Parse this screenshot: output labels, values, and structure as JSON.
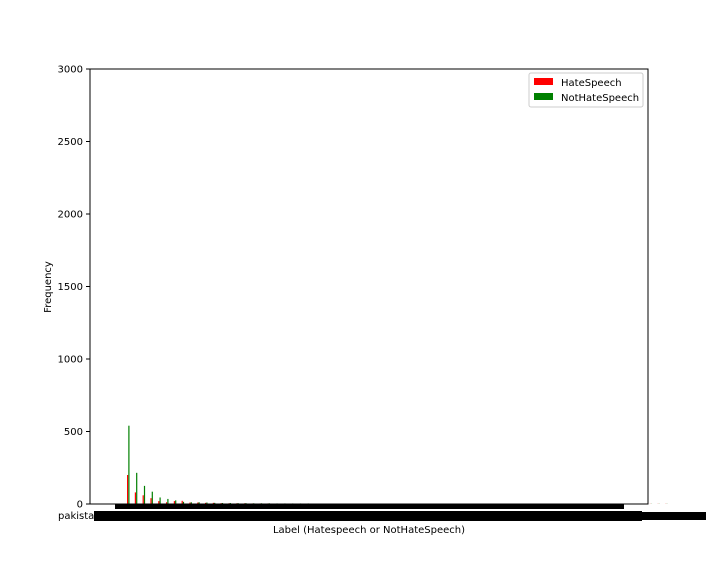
{
  "chart_data": {
    "type": "bar",
    "xlabel": "Label (Hatespeech or NotHateSpeech)",
    "ylabel": "Frequency",
    "ylim": [
      0,
      3000
    ],
    "yticks": [
      0,
      500,
      1000,
      1500,
      2000,
      2500,
      3000
    ],
    "grid": false,
    "legend_position": "top-right",
    "first_category_label": "pakistan",
    "category_count": 70,
    "series": [
      {
        "name": "HateSpeech",
        "color": "#ff0000",
        "values": [
          200,
          80,
          60,
          40,
          20,
          12,
          20,
          22,
          10,
          10,
          8,
          8,
          6,
          5,
          5,
          5,
          4,
          4,
          4,
          3,
          3,
          3,
          3,
          3,
          3,
          3,
          3,
          2,
          2,
          2,
          2,
          2,
          2,
          2,
          2,
          2,
          2,
          2,
          2,
          2,
          1,
          1,
          1,
          1,
          1,
          1,
          1,
          1,
          1,
          1,
          1,
          1,
          1,
          1,
          1,
          1,
          1,
          1,
          1,
          1,
          1,
          1,
          1,
          1,
          1,
          1,
          1,
          1,
          1,
          1
        ]
      },
      {
        "name": "NotHateSpeech",
        "color": "#008000",
        "values": [
          540,
          215,
          125,
          85,
          45,
          35,
          25,
          15,
          12,
          12,
          10,
          8,
          7,
          7,
          6,
          6,
          5,
          5,
          5,
          4,
          4,
          4,
          4,
          4,
          3,
          3,
          3,
          3,
          3,
          3,
          2,
          2,
          2,
          2,
          2,
          2,
          2,
          2,
          2,
          2,
          1,
          1,
          1,
          1,
          1,
          1,
          1,
          1,
          1,
          1,
          1,
          1,
          1,
          1,
          1,
          1,
          1,
          1,
          1,
          1,
          1,
          1,
          1,
          1,
          1,
          1,
          1,
          1,
          1,
          1
        ]
      }
    ]
  }
}
